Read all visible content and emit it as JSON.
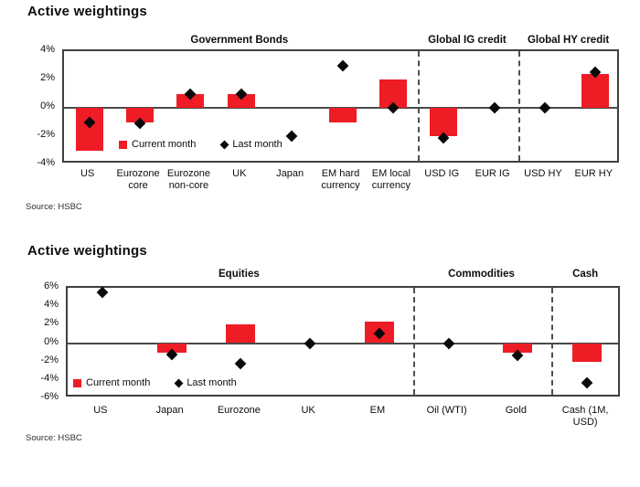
{
  "accent_color": "#ee1c25",
  "marker_color": "#0a0a0a",
  "chart_data": [
    {
      "type": "bar",
      "title": "Active weightings",
      "source": "Source: HSBC",
      "categories": [
        "US",
        "Eurozone core",
        "Eurozone non-core",
        "UK",
        "Japan",
        "EM hard currency",
        "EM local currency",
        "USD IG",
        "EUR IG",
        "USD HY",
        "EUR HY"
      ],
      "series": [
        {
          "name": "Current month",
          "type": "bar",
          "color": "#ee1c25",
          "values": [
            -3,
            -1,
            1,
            1,
            0,
            -1,
            2,
            -2,
            0,
            0,
            2.4
          ]
        },
        {
          "name": "Last month",
          "type": "scatter",
          "marker": "diamond",
          "color": "#0a0a0a",
          "values": [
            -1,
            -1.1,
            1,
            1,
            -2,
            3,
            0,
            -2.1,
            0,
            0,
            2.5
          ]
        }
      ],
      "sections": [
        {
          "label": "Government Bonds",
          "from": 0,
          "to": 6
        },
        {
          "label": "Global IG credit",
          "from": 7,
          "to": 8
        },
        {
          "label": "Global HY credit",
          "from": 9,
          "to": 10
        }
      ],
      "ylim": [
        -4,
        4
      ],
      "yticks": [
        4,
        2,
        0,
        -2,
        -4
      ],
      "ytick_suffix": "%",
      "grid": false,
      "legend_position": "inside-bottom-left"
    },
    {
      "type": "bar",
      "title": "Active weightings",
      "source": "Source: HSBC",
      "categories": [
        "US",
        "Japan",
        "Eurozone",
        "UK",
        "EM",
        "Oil (WTI)",
        "Gold",
        "Cash (1M, USD)"
      ],
      "series": [
        {
          "name": "Current month",
          "type": "bar",
          "color": "#ee1c25",
          "values": [
            0,
            -1,
            2,
            0,
            2.3,
            0,
            -1,
            -2
          ]
        },
        {
          "name": "Last month",
          "type": "scatter",
          "marker": "diamond",
          "color": "#0a0a0a",
          "values": [
            5.5,
            -1.2,
            -2.2,
            0,
            1,
            0,
            -1.3,
            -4.3
          ]
        }
      ],
      "sections": [
        {
          "label": "Equities",
          "from": 0,
          "to": 4
        },
        {
          "label": "Commodities",
          "from": 5,
          "to": 6
        },
        {
          "label": "Cash",
          "from": 7,
          "to": 7
        }
      ],
      "ylim": [
        -6,
        6
      ],
      "yticks": [
        6,
        4,
        2,
        0,
        -2,
        -4,
        -6
      ],
      "ytick_suffix": "%",
      "grid": false,
      "legend_position": "inside-bottom-left"
    }
  ]
}
